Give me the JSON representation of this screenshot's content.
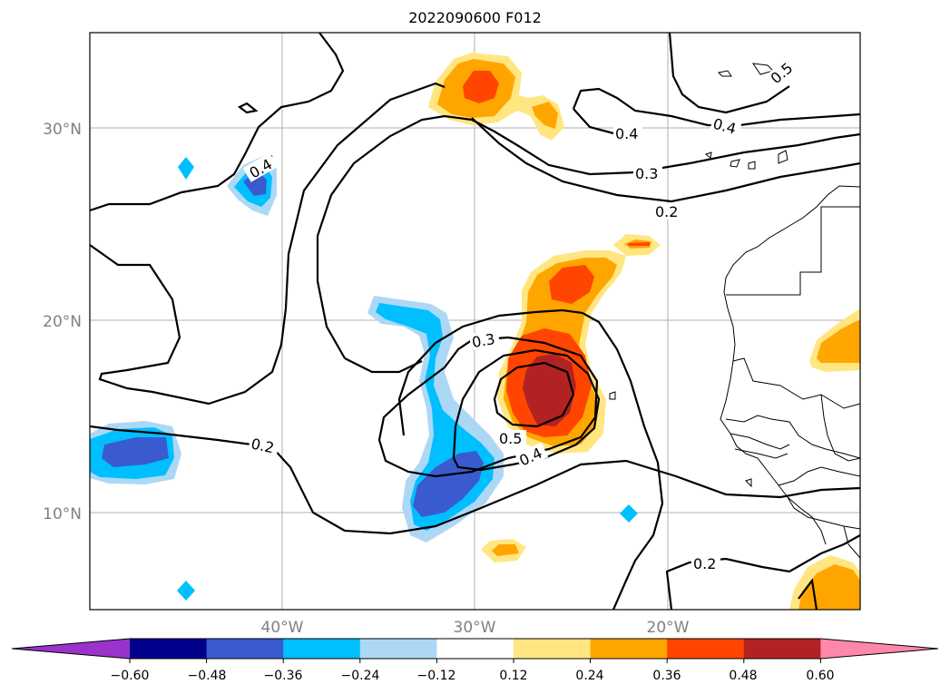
{
  "title": "2022090600 F012",
  "lat_labels": [
    "30°N",
    "20°N",
    "10°N"
  ],
  "lon_labels": [
    "40°W",
    "30°W",
    "20°W"
  ],
  "contour_labels": [
    "0.2",
    "0.3",
    "0.4",
    "0.5"
  ],
  "colorbar": {
    "tick_labels": [
      "−0.60",
      "−0.48",
      "−0.36",
      "−0.24",
      "−0.12",
      "0.12",
      "0.24",
      "0.36",
      "0.48",
      "0.60"
    ],
    "colors": [
      "#9933cc",
      "#00008b",
      "#3a5bd0",
      "#00bfff",
      "#add8f5",
      "#ffffff",
      "#ffe680",
      "#ffa500",
      "#ff4500",
      "#b22222",
      "#ff88aa"
    ]
  },
  "fill_colors": {
    "light_blue": "#add8f5",
    "cyan": "#00bfff",
    "royal_blue": "#3a5bd0",
    "yellow": "#ffe680",
    "orange": "#ffa500",
    "red_orange": "#ff4500",
    "dark_red": "#b22222"
  }
}
